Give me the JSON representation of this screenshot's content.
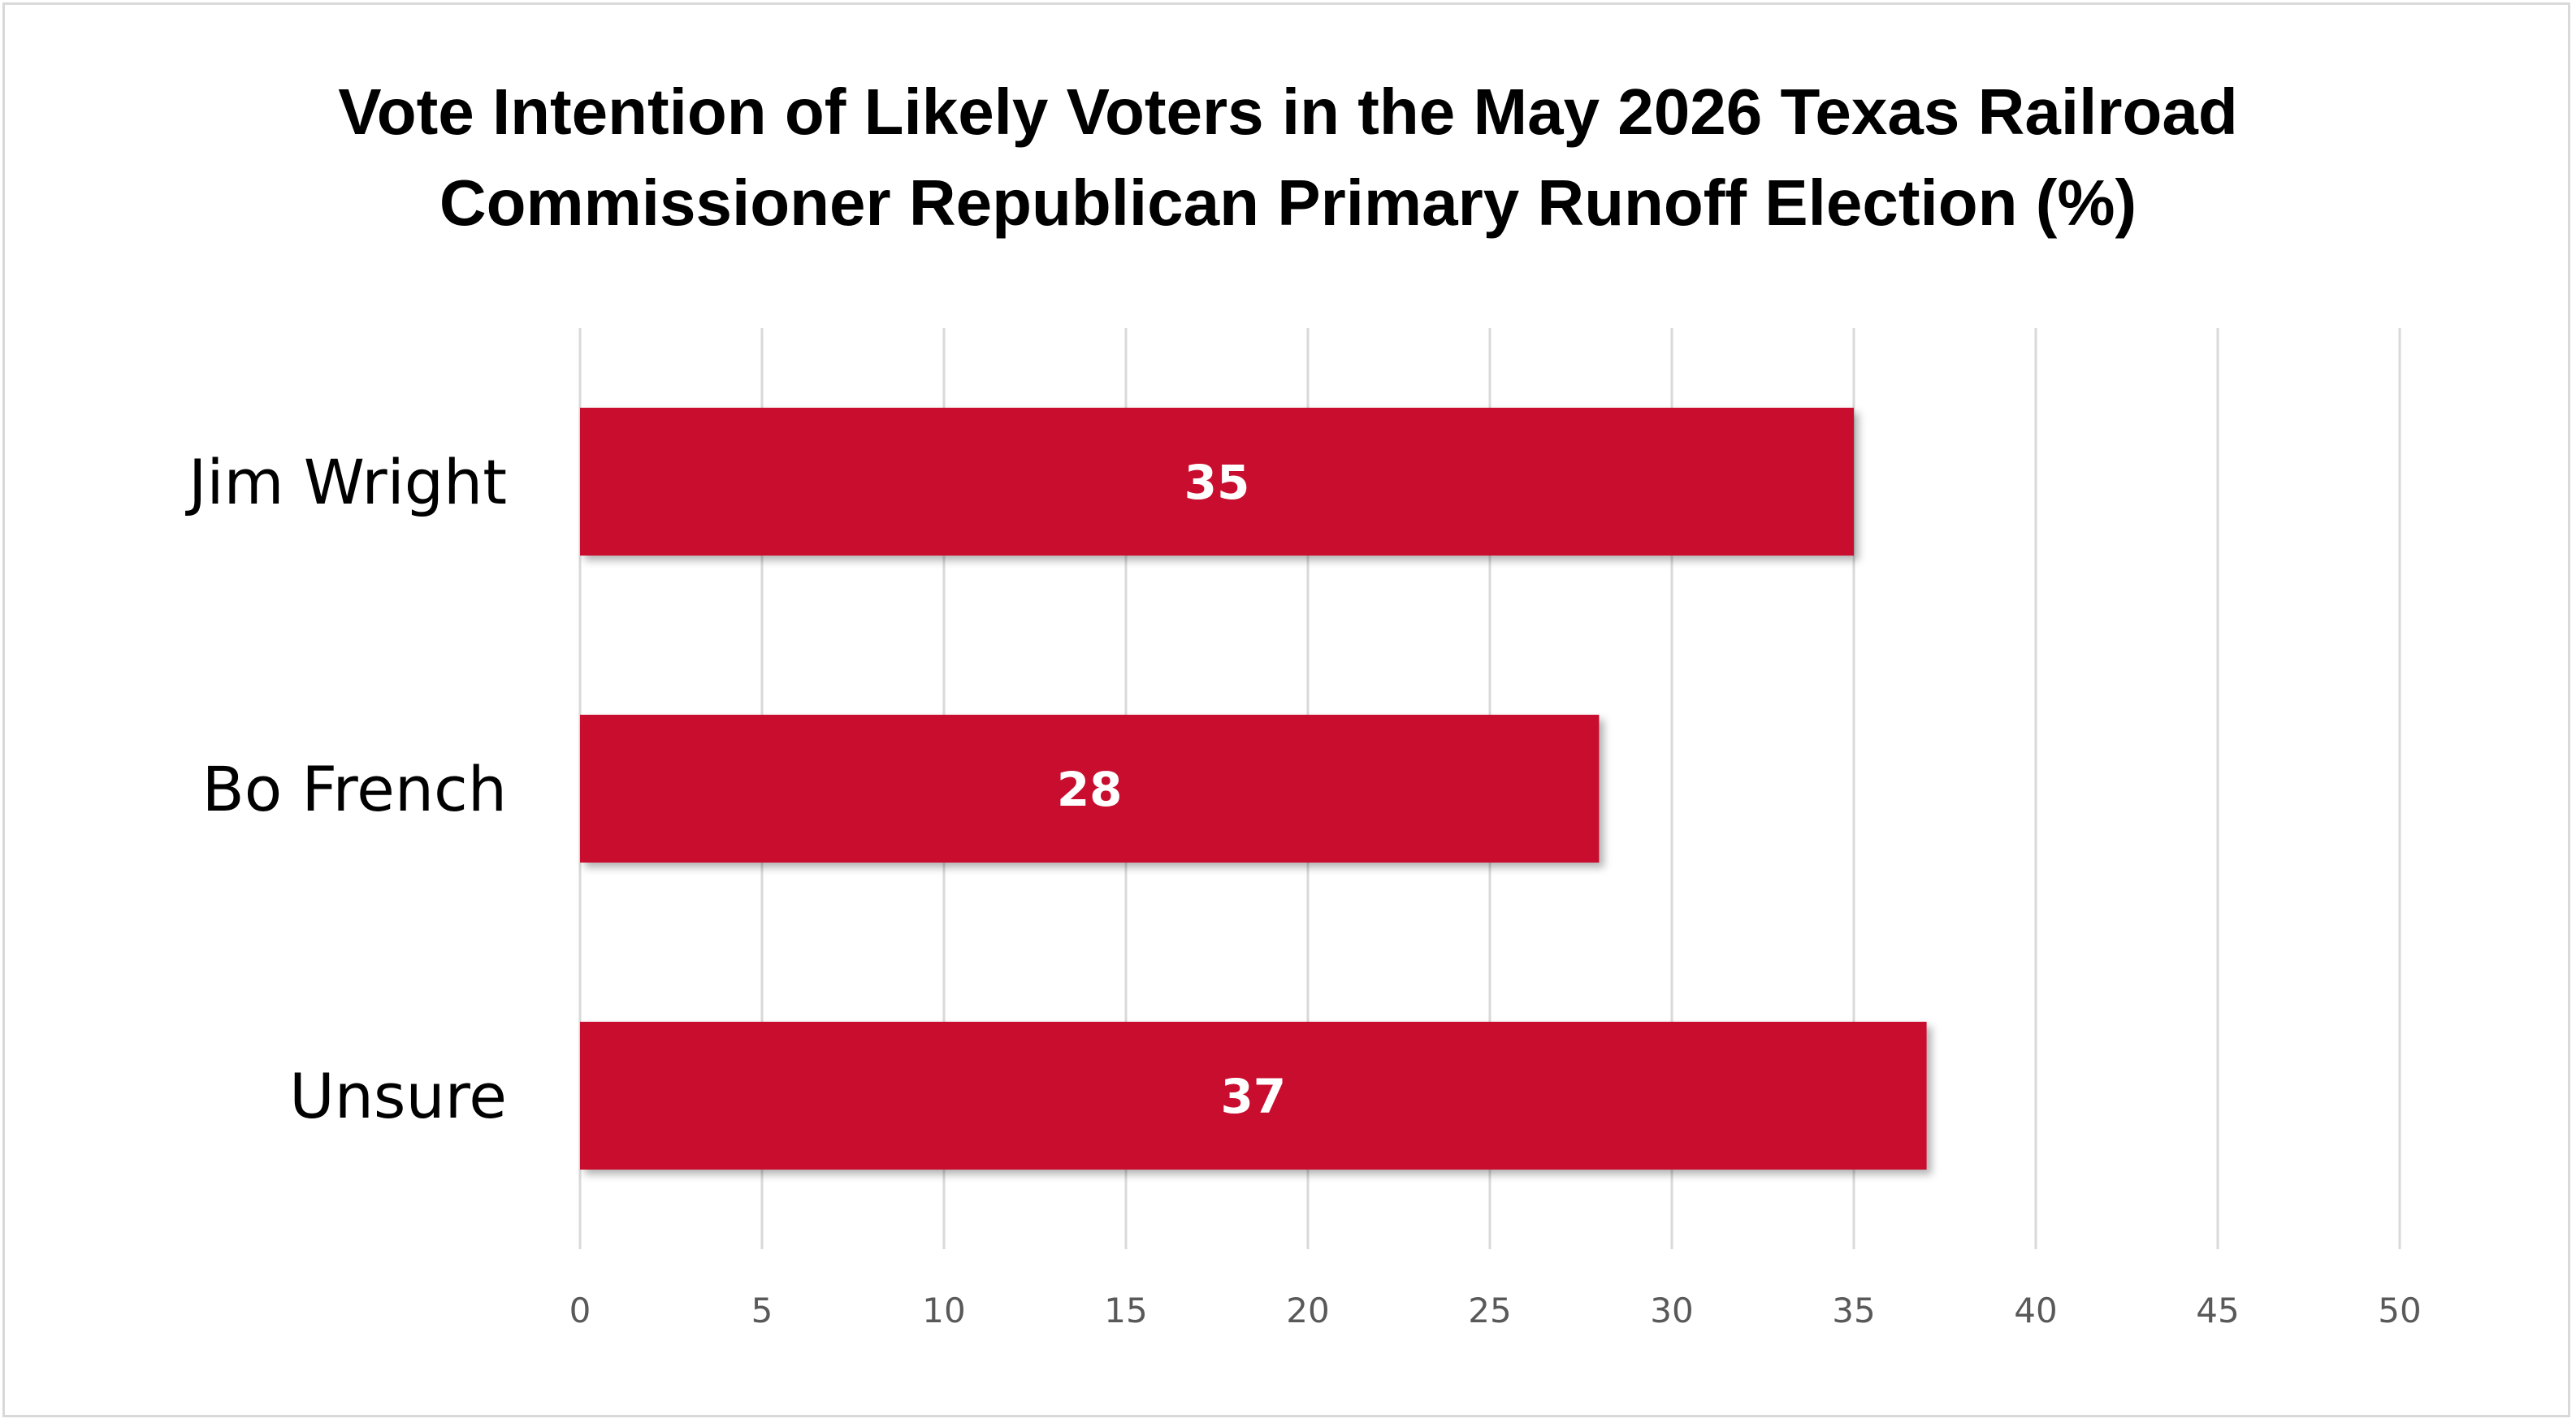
{
  "chart_data": {
    "type": "bar",
    "orientation": "horizontal",
    "title": "Vote Intention of Likely Voters in the May 2026 Texas Railroad Commissioner Republican Primary Runoff Election (%)",
    "title_lines": [
      "Vote Intention of Likely Voters in the May 2026 Texas Railroad",
      "Commissioner Republican Primary Runoff Election (%)"
    ],
    "categories": [
      "Jim Wright",
      "Bo French",
      "Unsure"
    ],
    "values": [
      35,
      28,
      37
    ],
    "data_labels": [
      "35",
      "28",
      "37"
    ],
    "xlim": [
      0,
      50
    ],
    "xticks": [
      "0",
      "5",
      "10",
      "15",
      "20",
      "25",
      "30",
      "35",
      "40",
      "45",
      "50"
    ],
    "xlabel": "",
    "ylabel": "",
    "grid": "vertical",
    "legend": "none",
    "bar_color": "#C8102E",
    "grid_color": "#d9d9d9"
  }
}
